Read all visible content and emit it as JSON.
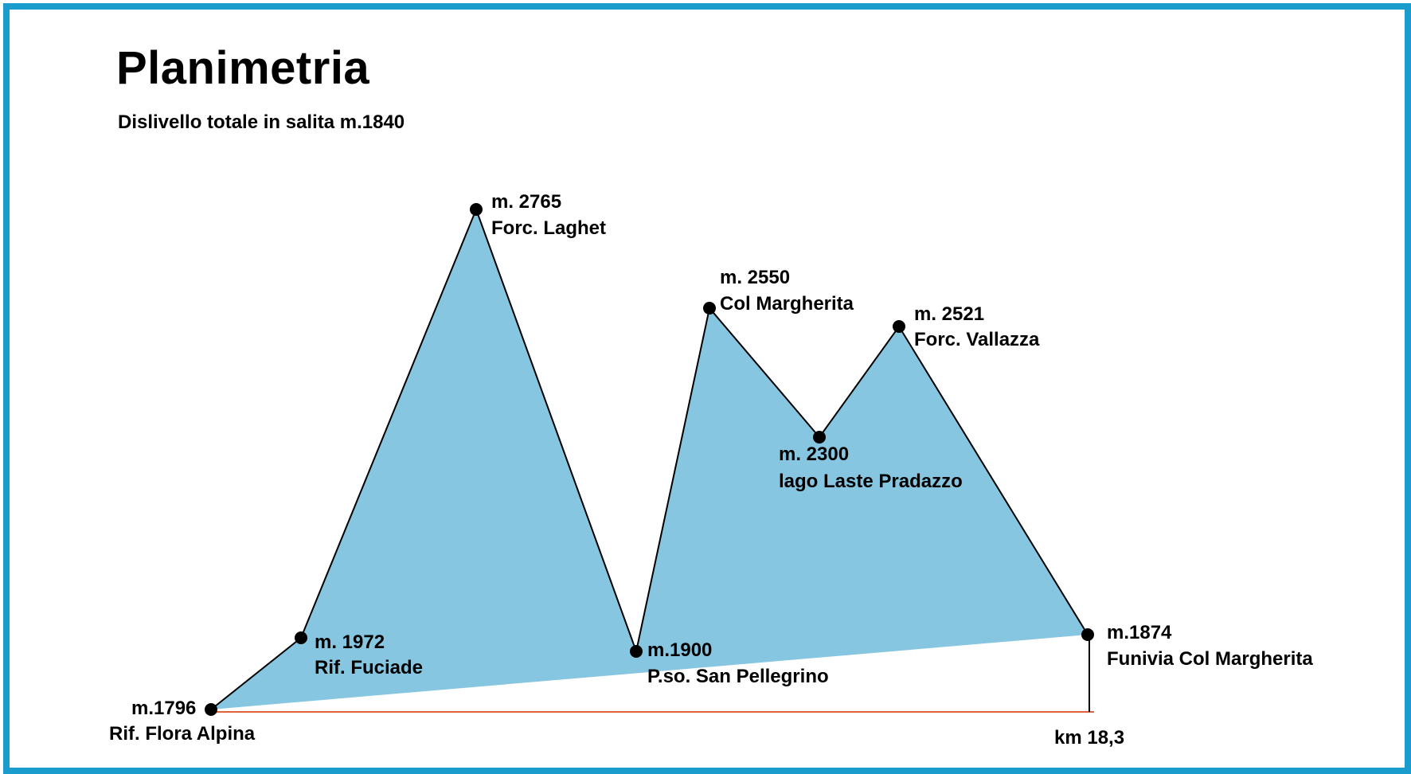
{
  "header": {
    "title": "Planimetria",
    "subtitle": "Dislivello totale in salita m.1840"
  },
  "colors": {
    "frame": "#1a9dcc",
    "fill": "#86c6e0",
    "baseline": "#e0623a",
    "points": "#000000"
  },
  "points": [
    {
      "id": "rif-flora-alpina",
      "elev": "m.1796",
      "name": "Rif. Flora Alpina"
    },
    {
      "id": "rif-fuciade",
      "elev": "m. 1972",
      "name": "Rif. Fuciade"
    },
    {
      "id": "forc-laghet",
      "elev": "m. 2765",
      "name": "Forc. Laghet"
    },
    {
      "id": "pso-san-pellegrino",
      "elev": "m.1900",
      "name": "P.so. San Pellegrino"
    },
    {
      "id": "col-margherita",
      "elev": "m. 2550",
      "name": "Col Margherita"
    },
    {
      "id": "lago-laste-pradazzo",
      "elev": "m. 2300",
      "name": "lago Laste Pradazzo"
    },
    {
      "id": "forc-vallazza",
      "elev": "m. 2521",
      "name": "Forc. Vallazza"
    },
    {
      "id": "funivia-col-margherita",
      "elev": "m.1874",
      "name": "Funivia Col Margherita"
    }
  ],
  "distance_label": "km 18,3"
}
